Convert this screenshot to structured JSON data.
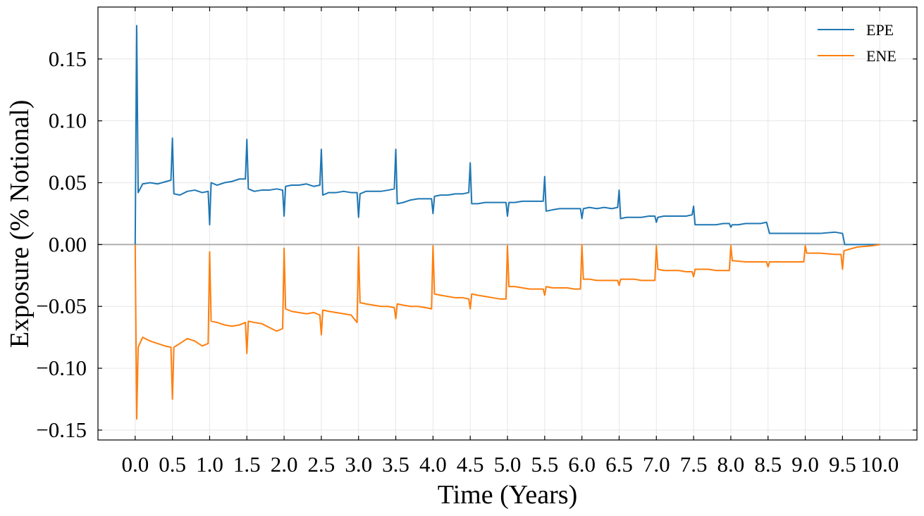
{
  "chart_data": {
    "type": "line",
    "xlabel": "Time (Years)",
    "ylabel": "Exposure (% Notional)",
    "xlim": [
      -0.5,
      10.5
    ],
    "ylim": [
      -0.158,
      0.192
    ],
    "x_ticks": [
      "0.0",
      "0.5",
      "1.0",
      "1.5",
      "2.0",
      "2.5",
      "3.0",
      "3.5",
      "4.0",
      "4.5",
      "5.0",
      "5.5",
      "6.0",
      "6.5",
      "7.0",
      "7.5",
      "8.0",
      "8.5",
      "9.0",
      "9.5",
      "10.0"
    ],
    "y_ticks": [
      {
        "value": 0.15,
        "label": "0.15"
      },
      {
        "value": 0.1,
        "label": "0.10"
      },
      {
        "value": 0.05,
        "label": "0.05"
      },
      {
        "value": 0.0,
        "label": "0.00"
      },
      {
        "value": -0.05,
        "label": "−0.05"
      },
      {
        "value": -0.1,
        "label": "−0.10"
      },
      {
        "value": -0.15,
        "label": "−0.15"
      }
    ],
    "grid": true,
    "legend_position": "top-right",
    "zero_line": true,
    "series": [
      {
        "name": "EPE",
        "color": "#1f77b4",
        "points": [
          [
            0.0,
            0.0
          ],
          [
            0.02,
            0.177
          ],
          [
            0.04,
            0.042
          ],
          [
            0.1,
            0.049
          ],
          [
            0.2,
            0.05
          ],
          [
            0.3,
            0.049
          ],
          [
            0.48,
            0.052
          ],
          [
            0.5,
            0.086
          ],
          [
            0.52,
            0.041
          ],
          [
            0.6,
            0.04
          ],
          [
            0.7,
            0.043
          ],
          [
            0.8,
            0.044
          ],
          [
            0.9,
            0.042
          ],
          [
            0.98,
            0.043
          ],
          [
            1.0,
            0.016
          ],
          [
            1.02,
            0.05
          ],
          [
            1.1,
            0.048
          ],
          [
            1.2,
            0.05
          ],
          [
            1.3,
            0.051
          ],
          [
            1.4,
            0.053
          ],
          [
            1.48,
            0.053
          ],
          [
            1.5,
            0.085
          ],
          [
            1.52,
            0.045
          ],
          [
            1.6,
            0.043
          ],
          [
            1.7,
            0.044
          ],
          [
            1.8,
            0.044
          ],
          [
            1.9,
            0.045
          ],
          [
            1.98,
            0.044
          ],
          [
            2.0,
            0.023
          ],
          [
            2.02,
            0.047
          ],
          [
            2.1,
            0.048
          ],
          [
            2.2,
            0.048
          ],
          [
            2.3,
            0.049
          ],
          [
            2.4,
            0.047
          ],
          [
            2.48,
            0.048
          ],
          [
            2.5,
            0.077
          ],
          [
            2.52,
            0.04
          ],
          [
            2.6,
            0.042
          ],
          [
            2.7,
            0.042
          ],
          [
            2.8,
            0.043
          ],
          [
            2.9,
            0.042
          ],
          [
            2.98,
            0.042
          ],
          [
            3.0,
            0.022
          ],
          [
            3.02,
            0.041
          ],
          [
            3.1,
            0.043
          ],
          [
            3.2,
            0.043
          ],
          [
            3.3,
            0.043
          ],
          [
            3.4,
            0.044
          ],
          [
            3.48,
            0.045
          ],
          [
            3.5,
            0.077
          ],
          [
            3.52,
            0.033
          ],
          [
            3.6,
            0.034
          ],
          [
            3.7,
            0.036
          ],
          [
            3.8,
            0.037
          ],
          [
            3.9,
            0.037
          ],
          [
            3.98,
            0.037
          ],
          [
            4.0,
            0.025
          ],
          [
            4.02,
            0.039
          ],
          [
            4.1,
            0.04
          ],
          [
            4.2,
            0.04
          ],
          [
            4.3,
            0.041
          ],
          [
            4.4,
            0.041
          ],
          [
            4.48,
            0.042
          ],
          [
            4.5,
            0.066
          ],
          [
            4.52,
            0.033
          ],
          [
            4.6,
            0.033
          ],
          [
            4.7,
            0.034
          ],
          [
            4.8,
            0.034
          ],
          [
            4.9,
            0.034
          ],
          [
            4.98,
            0.034
          ],
          [
            5.0,
            0.023
          ],
          [
            5.02,
            0.034
          ],
          [
            5.1,
            0.034
          ],
          [
            5.2,
            0.035
          ],
          [
            5.3,
            0.035
          ],
          [
            5.4,
            0.035
          ],
          [
            5.48,
            0.035
          ],
          [
            5.5,
            0.055
          ],
          [
            5.52,
            0.027
          ],
          [
            5.6,
            0.028
          ],
          [
            5.7,
            0.029
          ],
          [
            5.8,
            0.029
          ],
          [
            5.9,
            0.029
          ],
          [
            5.98,
            0.029
          ],
          [
            6.0,
            0.021
          ],
          [
            6.02,
            0.029
          ],
          [
            6.1,
            0.03
          ],
          [
            6.2,
            0.029
          ],
          [
            6.3,
            0.03
          ],
          [
            6.4,
            0.029
          ],
          [
            6.48,
            0.03
          ],
          [
            6.5,
            0.044
          ],
          [
            6.52,
            0.021
          ],
          [
            6.6,
            0.022
          ],
          [
            6.7,
            0.022
          ],
          [
            6.8,
            0.022
          ],
          [
            6.9,
            0.023
          ],
          [
            6.98,
            0.023
          ],
          [
            7.0,
            0.018
          ],
          [
            7.02,
            0.022
          ],
          [
            7.1,
            0.023
          ],
          [
            7.2,
            0.023
          ],
          [
            7.3,
            0.023
          ],
          [
            7.4,
            0.023
          ],
          [
            7.48,
            0.024
          ],
          [
            7.5,
            0.031
          ],
          [
            7.52,
            0.016
          ],
          [
            7.6,
            0.016
          ],
          [
            7.7,
            0.016
          ],
          [
            7.8,
            0.016
          ],
          [
            7.9,
            0.017
          ],
          [
            7.98,
            0.017
          ],
          [
            8.0,
            0.014
          ],
          [
            8.02,
            0.016
          ],
          [
            8.1,
            0.016
          ],
          [
            8.2,
            0.017
          ],
          [
            8.3,
            0.017
          ],
          [
            8.4,
            0.017
          ],
          [
            8.48,
            0.018
          ],
          [
            8.52,
            0.009
          ],
          [
            8.6,
            0.009
          ],
          [
            8.8,
            0.009
          ],
          [
            9.0,
            0.009
          ],
          [
            9.2,
            0.009
          ],
          [
            9.4,
            0.01
          ],
          [
            9.5,
            0.009
          ],
          [
            9.53,
            0.0
          ],
          [
            10.0,
            0.0
          ]
        ]
      },
      {
        "name": "ENE",
        "color": "#ff7f0e",
        "points": [
          [
            0.0,
            0.0
          ],
          [
            0.02,
            -0.141
          ],
          [
            0.04,
            -0.083
          ],
          [
            0.1,
            -0.075
          ],
          [
            0.2,
            -0.078
          ],
          [
            0.3,
            -0.08
          ],
          [
            0.4,
            -0.082
          ],
          [
            0.48,
            -0.083
          ],
          [
            0.5,
            -0.125
          ],
          [
            0.52,
            -0.083
          ],
          [
            0.6,
            -0.08
          ],
          [
            0.7,
            -0.076
          ],
          [
            0.8,
            -0.078
          ],
          [
            0.9,
            -0.082
          ],
          [
            0.98,
            -0.08
          ],
          [
            1.0,
            -0.006
          ],
          [
            1.02,
            -0.062
          ],
          [
            1.1,
            -0.063
          ],
          [
            1.2,
            -0.065
          ],
          [
            1.3,
            -0.066
          ],
          [
            1.4,
            -0.065
          ],
          [
            1.48,
            -0.063
          ],
          [
            1.5,
            -0.088
          ],
          [
            1.52,
            -0.062
          ],
          [
            1.6,
            -0.063
          ],
          [
            1.7,
            -0.064
          ],
          [
            1.8,
            -0.067
          ],
          [
            1.9,
            -0.07
          ],
          [
            1.98,
            -0.068
          ],
          [
            2.0,
            -0.003
          ],
          [
            2.02,
            -0.052
          ],
          [
            2.1,
            -0.054
          ],
          [
            2.2,
            -0.055
          ],
          [
            2.3,
            -0.056
          ],
          [
            2.4,
            -0.055
          ],
          [
            2.48,
            -0.057
          ],
          [
            2.5,
            -0.073
          ],
          [
            2.52,
            -0.053
          ],
          [
            2.6,
            -0.054
          ],
          [
            2.7,
            -0.055
          ],
          [
            2.8,
            -0.056
          ],
          [
            2.9,
            -0.057
          ],
          [
            2.98,
            -0.063
          ],
          [
            3.0,
            -0.002
          ],
          [
            3.02,
            -0.047
          ],
          [
            3.1,
            -0.048
          ],
          [
            3.2,
            -0.049
          ],
          [
            3.3,
            -0.05
          ],
          [
            3.4,
            -0.05
          ],
          [
            3.48,
            -0.051
          ],
          [
            3.5,
            -0.06
          ],
          [
            3.52,
            -0.048
          ],
          [
            3.6,
            -0.049
          ],
          [
            3.7,
            -0.05
          ],
          [
            3.8,
            -0.05
          ],
          [
            3.9,
            -0.051
          ],
          [
            3.98,
            -0.052
          ],
          [
            4.0,
            -0.001
          ],
          [
            4.02,
            -0.04
          ],
          [
            4.1,
            -0.041
          ],
          [
            4.2,
            -0.042
          ],
          [
            4.3,
            -0.043
          ],
          [
            4.4,
            -0.043
          ],
          [
            4.48,
            -0.044
          ],
          [
            4.5,
            -0.052
          ],
          [
            4.52,
            -0.04
          ],
          [
            4.6,
            -0.041
          ],
          [
            4.7,
            -0.042
          ],
          [
            4.8,
            -0.043
          ],
          [
            4.9,
            -0.044
          ],
          [
            4.98,
            -0.044
          ],
          [
            5.0,
            -0.001
          ],
          [
            5.02,
            -0.034
          ],
          [
            5.1,
            -0.034
          ],
          [
            5.2,
            -0.035
          ],
          [
            5.3,
            -0.036
          ],
          [
            5.4,
            -0.036
          ],
          [
            5.48,
            -0.036
          ],
          [
            5.5,
            -0.041
          ],
          [
            5.52,
            -0.034
          ],
          [
            5.6,
            -0.035
          ],
          [
            5.7,
            -0.035
          ],
          [
            5.8,
            -0.035
          ],
          [
            5.9,
            -0.036
          ],
          [
            5.98,
            -0.036
          ],
          [
            6.0,
            0.0
          ],
          [
            6.02,
            -0.028
          ],
          [
            6.1,
            -0.028
          ],
          [
            6.2,
            -0.029
          ],
          [
            6.3,
            -0.029
          ],
          [
            6.4,
            -0.029
          ],
          [
            6.48,
            -0.029
          ],
          [
            6.5,
            -0.033
          ],
          [
            6.52,
            -0.028
          ],
          [
            6.6,
            -0.028
          ],
          [
            6.7,
            -0.028
          ],
          [
            6.8,
            -0.029
          ],
          [
            6.9,
            -0.029
          ],
          [
            6.98,
            -0.029
          ],
          [
            7.0,
            -0.001
          ],
          [
            7.02,
            -0.02
          ],
          [
            7.1,
            -0.021
          ],
          [
            7.2,
            -0.021
          ],
          [
            7.3,
            -0.021
          ],
          [
            7.4,
            -0.022
          ],
          [
            7.48,
            -0.022
          ],
          [
            7.5,
            -0.026
          ],
          [
            7.52,
            -0.02
          ],
          [
            7.6,
            -0.02
          ],
          [
            7.7,
            -0.02
          ],
          [
            7.8,
            -0.021
          ],
          [
            7.9,
            -0.021
          ],
          [
            7.98,
            -0.021
          ],
          [
            8.0,
            -0.001
          ],
          [
            8.02,
            -0.013
          ],
          [
            8.2,
            -0.014
          ],
          [
            8.4,
            -0.014
          ],
          [
            8.48,
            -0.014
          ],
          [
            8.5,
            -0.018
          ],
          [
            8.52,
            -0.014
          ],
          [
            8.7,
            -0.014
          ],
          [
            8.9,
            -0.014
          ],
          [
            8.98,
            -0.014
          ],
          [
            9.0,
            -0.001
          ],
          [
            9.02,
            -0.007
          ],
          [
            9.2,
            -0.007
          ],
          [
            9.4,
            -0.008
          ],
          [
            9.48,
            -0.008
          ],
          [
            9.5,
            -0.02
          ],
          [
            9.52,
            -0.005
          ],
          [
            9.7,
            -0.002
          ],
          [
            9.9,
            -0.001
          ],
          [
            10.0,
            0.0
          ]
        ]
      }
    ]
  }
}
